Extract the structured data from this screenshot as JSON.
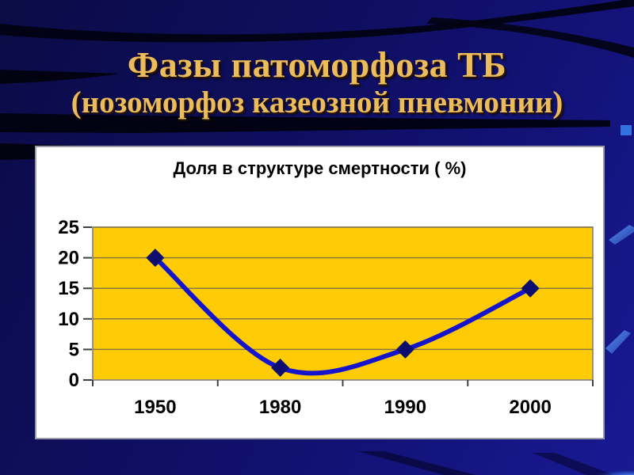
{
  "slide": {
    "title_line1": "Фазы патоморфоза ТБ",
    "title_line2": "(нозоморфоз казеозной пневмонии)"
  },
  "chart_data": {
    "type": "line",
    "title": "Доля в структуре смертности ( %)",
    "categories": [
      "1950",
      "1980",
      "1990",
      "2000"
    ],
    "values": [
      20,
      2,
      5,
      15
    ],
    "xlabel": "",
    "ylabel": "",
    "ylim": [
      0,
      25
    ],
    "yticks": [
      0,
      5,
      10,
      15,
      20,
      25
    ],
    "grid": true,
    "smooth": true,
    "marker": "diamond",
    "legend": "none",
    "colors": {
      "plot_bg": "#FFCB05",
      "line": "#1414CC",
      "marker": "#0D0D70",
      "gridline": "#8A7A42",
      "axis_border": "#808080",
      "tick": "#404040",
      "label": "#000000",
      "panel_bg": "#FFFFFF",
      "slide_bg": "#0E0E62",
      "title_gold": "#EBBC5C"
    }
  }
}
